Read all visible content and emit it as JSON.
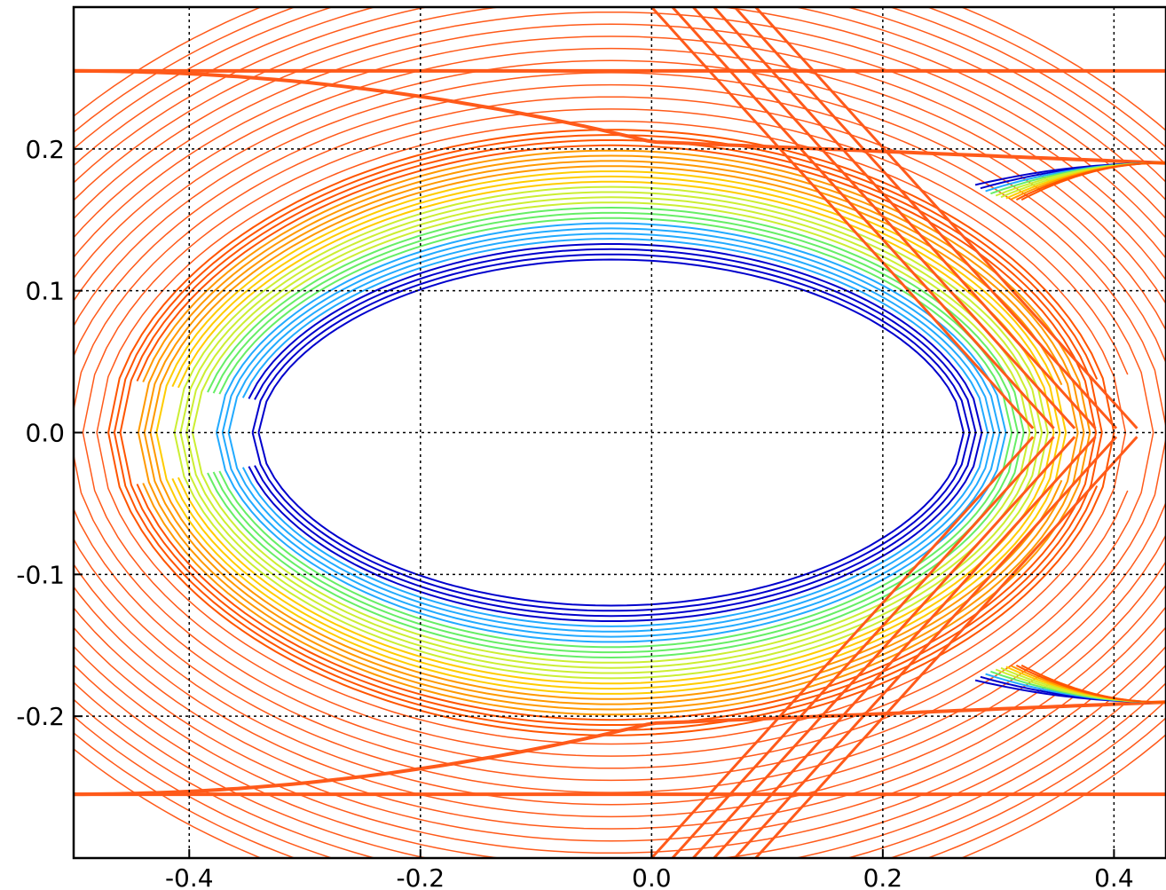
{
  "chart_data": {
    "type": "contour",
    "title": "",
    "xlabel": "",
    "ylabel": "",
    "xlim": [
      -0.5,
      0.445
    ],
    "ylim": [
      -0.3,
      0.3
    ],
    "grid": true,
    "x_ticks": [
      {
        "value": -0.4,
        "label": "-0.4"
      },
      {
        "value": -0.2,
        "label": "-0.2"
      },
      {
        "value": 0.0,
        "label": "0.0"
      },
      {
        "value": 0.2,
        "label": "0.2"
      },
      {
        "value": 0.4,
        "label": "0.4"
      }
    ],
    "y_ticks": [
      {
        "value": 0.2,
        "label": "0.2"
      },
      {
        "value": 0.1,
        "label": "0.1"
      },
      {
        "value": 0.0,
        "label": "0.0"
      },
      {
        "value": -0.1,
        "label": "-0.1"
      },
      {
        "value": -0.2,
        "label": "-0.2"
      }
    ],
    "separatrix": {
      "x_left": -0.34,
      "x_right": 0.27,
      "half_height": 0.122
    },
    "outer_band": {
      "y_at_left": 0.255,
      "y_at_x0": 0.205,
      "y_at_right": 0.19
    },
    "colormap": [
      "#0000cc",
      "#22aaff",
      "#66ee66",
      "#ccee33",
      "#ffcc00",
      "#ff9900",
      "#ff5500"
    ],
    "colors": {
      "contour": "#ff5a1a",
      "axis": "#000000",
      "grid": "#000000",
      "background": "#ffffff"
    }
  }
}
